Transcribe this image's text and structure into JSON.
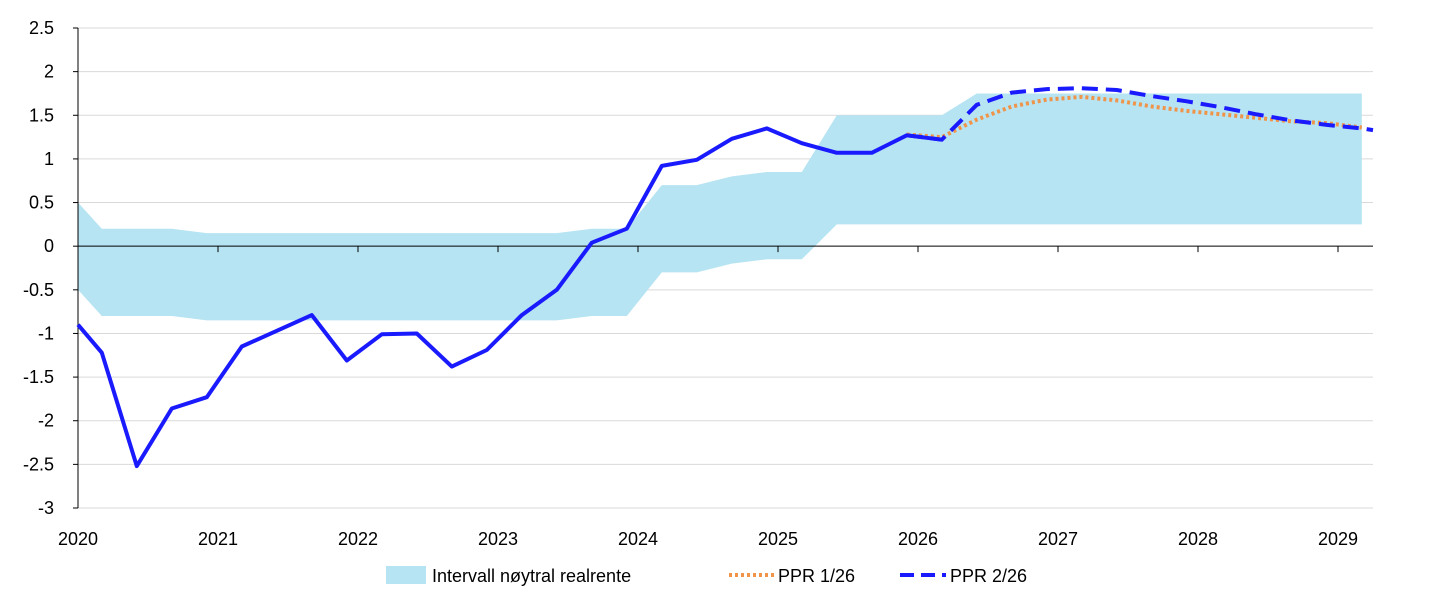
{
  "chart_data": {
    "type": "line",
    "xlim": [
      2020,
      2029.25
    ],
    "ylim": [
      -3,
      2.5
    ],
    "x_ticks": [
      "2020",
      "2021",
      "2022",
      "2023",
      "2024",
      "2025",
      "2026",
      "2027",
      "2028",
      "2029"
    ],
    "y_ticks": [
      "2.5",
      "2",
      "1.5",
      "1",
      "0.5",
      "0",
      "-0.5",
      "-1",
      "-1.5",
      "-2",
      "-2.5",
      "-3"
    ],
    "grid": "horizontal",
    "legend_position": "bottom",
    "legend": [
      "Intervall nøytral realrente",
      "PPR 1/26",
      "PPR 2/26"
    ],
    "band": {
      "name": "Intervall nøytral realrente",
      "color": "#b6e4f2",
      "x": [
        2020,
        2020.17,
        2020.67,
        2020.92,
        2023.42,
        2023.67,
        2023.92,
        2024.17,
        2024.42,
        2024.67,
        2024.92,
        2025.17,
        2025.42,
        2025.91,
        2026.17,
        2026.42,
        2029.17
      ],
      "upper": [
        0.5,
        0.2,
        0.2,
        0.15,
        0.15,
        0.2,
        0.2,
        0.7,
        0.7,
        0.8,
        0.85,
        0.85,
        1.5,
        1.5,
        1.5,
        1.75,
        1.75
      ],
      "lower": [
        -0.5,
        -0.8,
        -0.8,
        -0.85,
        -0.85,
        -0.8,
        -0.8,
        -0.3,
        -0.3,
        -0.2,
        -0.15,
        -0.15,
        0.25,
        0.25,
        0.25,
        0.25,
        0.25
      ]
    },
    "series": [
      {
        "name": "PPR 2/26",
        "color": "#1a1aff",
        "x": [
          2020,
          2020.17,
          2020.42,
          2020.67,
          2020.92,
          2021.17,
          2021.42,
          2021.67,
          2021.92,
          2022.17,
          2022.42,
          2022.67,
          2022.92,
          2023.17,
          2023.42,
          2023.67,
          2023.92,
          2024.17,
          2024.42,
          2024.67,
          2024.92,
          2025.17,
          2025.42,
          2025.67,
          2025.92,
          2026.17
        ],
        "values": [
          -0.9,
          -1.22,
          -2.52,
          -1.86,
          -1.73,
          -1.15,
          -0.97,
          -0.79,
          -1.31,
          -1.01,
          -1.0,
          -1.38,
          -1.19,
          -0.79,
          -0.5,
          0.04,
          0.2,
          0.92,
          0.99,
          1.23,
          1.35,
          1.18,
          1.07,
          1.07,
          1.27,
          1.22
        ],
        "forecast": {
          "x": [
            2025.92,
            2026.17,
            2026.42,
            2026.67,
            2026.92,
            2027.17,
            2027.42,
            2027.67,
            2027.92,
            2028.17,
            2028.42,
            2028.67,
            2028.92,
            2029.17,
            2029.25
          ],
          "values": [
            1.27,
            1.22,
            1.62,
            1.76,
            1.8,
            1.81,
            1.79,
            1.72,
            1.66,
            1.59,
            1.51,
            1.44,
            1.39,
            1.35,
            1.33
          ]
        }
      },
      {
        "name": "PPR 1/26",
        "color": "#f0944a",
        "x": [
          2025.92,
          2026.17,
          2026.42,
          2026.67,
          2026.92,
          2027.17,
          2027.42,
          2027.67,
          2027.92,
          2028.17,
          2028.42,
          2028.67,
          2028.92,
          2029.17
        ],
        "values": [
          1.28,
          1.25,
          1.45,
          1.6,
          1.68,
          1.71,
          1.67,
          1.6,
          1.55,
          1.51,
          1.47,
          1.43,
          1.41,
          1.36
        ]
      }
    ]
  }
}
